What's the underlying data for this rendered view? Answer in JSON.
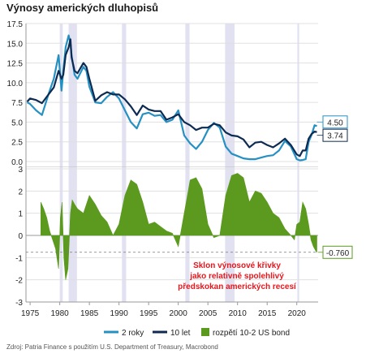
{
  "chart_data": {
    "type": "line",
    "title": "Výnosy amerických dluhopisů",
    "source": "Zdroj: Patria Finance s použitím U.S. Department of Treasury, Macrobond",
    "annotation": [
      "Sklon výnosové křivky",
      "jako relativně spolehlivý",
      "předskokan amerických recesí"
    ],
    "x_ticks": [
      "1975",
      "1980",
      "1985",
      "1990",
      "1995",
      "2000",
      "2005",
      "2010",
      "2015",
      "2020"
    ],
    "top_panel": {
      "ylim": [
        0,
        17.5
      ],
      "y_ticks": [
        "0.0",
        "2.5",
        "5.0",
        "7.5",
        "10.0",
        "12.5",
        "15.0",
        "17.5"
      ],
      "x": [
        1974.5,
        1975,
        1976,
        1977,
        1978,
        1979,
        1979.8,
        1980.3,
        1980.6,
        1981,
        1981.5,
        1981.8,
        1982,
        1982.5,
        1983,
        1984,
        1984.5,
        1985,
        1986,
        1987,
        1988,
        1989,
        1990,
        1991,
        1992,
        1993,
        1994,
        1995,
        1996,
        1997,
        1998,
        1999,
        2000,
        2001,
        2002,
        2003,
        2004,
        2005,
        2006,
        2007,
        2008,
        2009,
        2010,
        2011,
        2012,
        2013,
        2014,
        2015,
        2016,
        2017,
        2018,
        2019,
        2020,
        2020.5,
        2021,
        2021.5,
        2022,
        2022.5,
        2023,
        2023.4
      ],
      "series": [
        {
          "name": "2 roky",
          "color": "#2590c2",
          "values": [
            7.5,
            7.3,
            6.5,
            5.9,
            8.3,
            10.5,
            13.5,
            9.0,
            11.5,
            14.5,
            16.0,
            15.0,
            13.5,
            11.0,
            10.5,
            12.0,
            11.5,
            9.5,
            7.5,
            7.4,
            8.2,
            8.8,
            8.0,
            6.5,
            5.0,
            4.2,
            6.0,
            6.2,
            5.8,
            5.9,
            5.0,
            5.3,
            6.5,
            3.3,
            2.3,
            1.6,
            2.5,
            4.0,
            4.9,
            4.3,
            1.9,
            1.0,
            0.7,
            0.4,
            0.3,
            0.3,
            0.5,
            0.7,
            0.8,
            1.4,
            2.6,
            1.9,
            0.3,
            0.15,
            0.2,
            0.3,
            2.5,
            3.4,
            4.6,
            4.5
          ]
        },
        {
          "name": "10 let",
          "color": "#0d2b52",
          "values": [
            7.6,
            8.0,
            7.8,
            7.4,
            8.4,
            9.4,
            11.5,
            10.5,
            11.0,
            13.5,
            14.5,
            15.5,
            13.2,
            11.5,
            11.2,
            12.5,
            12.0,
            10.5,
            7.7,
            8.4,
            8.8,
            8.5,
            8.5,
            7.9,
            7.0,
            5.9,
            7.1,
            6.6,
            6.4,
            6.4,
            5.3,
            5.6,
            6.0,
            5.0,
            4.6,
            4.0,
            4.3,
            4.3,
            4.8,
            4.6,
            3.7,
            3.3,
            3.2,
            2.8,
            1.8,
            2.4,
            2.5,
            2.1,
            1.8,
            2.3,
            2.9,
            2.1,
            0.9,
            0.7,
            1.4,
            1.4,
            2.9,
            3.5,
            3.8,
            3.74
          ]
        }
      ],
      "end_labels": [
        "4.50",
        "3.74"
      ]
    },
    "bottom_panel": {
      "ylim": [
        -3,
        3
      ],
      "y_ticks": [
        "3",
        "2",
        "1",
        "0",
        "-1",
        "-2",
        "-3"
      ],
      "series": [
        {
          "name": "rozpětí 10-2 US bond",
          "color": "#5b9a1f",
          "x": [
            1976.8,
            1977.3,
            1977.8,
            1978.3,
            1978.8,
            1979.3,
            1979.8,
            1980.1,
            1980.4,
            1980.7,
            1981,
            1981.4,
            1981.8,
            1982.1,
            1982.5,
            1983,
            1984,
            1985,
            1986,
            1987,
            1988,
            1989,
            1990,
            1991,
            1992,
            1993,
            1994,
            1995,
            1996,
            1997,
            1998,
            1999,
            2000,
            2001,
            2002,
            2003,
            2004,
            2005,
            2006,
            2007,
            2008,
            2009,
            2010,
            2011,
            2012,
            2013,
            2014,
            2015,
            2016,
            2017,
            2018,
            2019,
            2019.6,
            2020,
            2020.5,
            2021,
            2021.5,
            2022,
            2022.4,
            2022.8,
            2023.2,
            2023.4
          ],
          "values": [
            1.5,
            1.2,
            0.8,
            0.2,
            -0.2,
            -0.6,
            -1.5,
            0.8,
            1.5,
            -1.0,
            -2.0,
            -1.5,
            1.0,
            1.6,
            1.4,
            1.2,
            1.0,
            1.8,
            1.4,
            0.9,
            0.6,
            0.0,
            0.5,
            1.8,
            2.5,
            2.3,
            1.5,
            0.5,
            0.6,
            0.4,
            0.2,
            0.1,
            -0.5,
            1.0,
            2.5,
            2.6,
            2.1,
            0.5,
            -0.1,
            0.0,
            1.8,
            2.7,
            2.8,
            2.6,
            1.5,
            2.0,
            1.9,
            1.5,
            1.0,
            0.8,
            0.3,
            0.0,
            -0.2,
            0.5,
            0.6,
            1.5,
            1.2,
            0.5,
            -0.2,
            -0.5,
            -0.7,
            -0.76
          ]
        }
      ],
      "end_label": "-0.760"
    },
    "recessions": [
      [
        1980.0,
        1980.5
      ],
      [
        1981.5,
        1982.9
      ],
      [
        1990.5,
        1991.2
      ],
      [
        2001.2,
        2001.9
      ],
      [
        2007.9,
        2009.5
      ],
      [
        2020.1,
        2020.4
      ]
    ]
  }
}
